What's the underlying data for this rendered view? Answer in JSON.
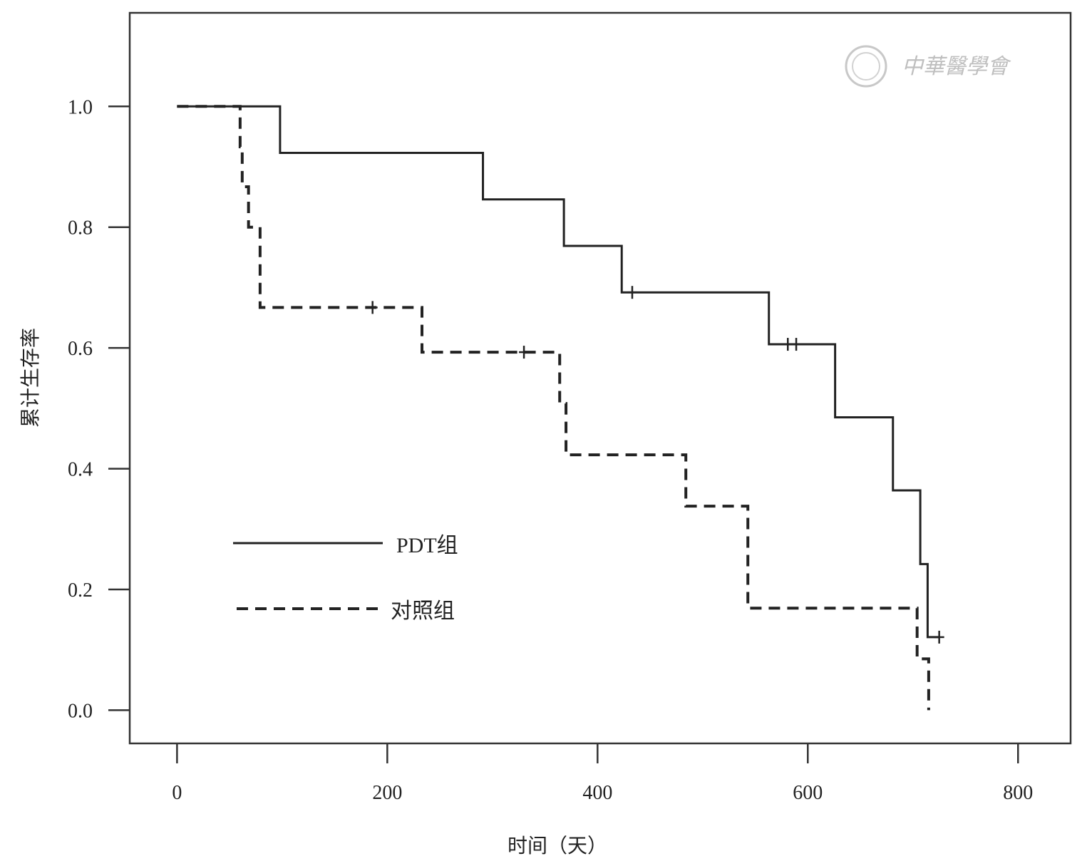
{
  "chart_data": {
    "type": "line",
    "subtype": "kaplan-meier-step",
    "xlabel": "时间（天）",
    "ylabel": "累计生存率",
    "xlim": [
      -45,
      850
    ],
    "ylim": [
      -0.055,
      1.155
    ],
    "xticks": [
      0,
      200,
      400,
      600,
      800
    ],
    "xtick_labels": [
      "0",
      "200",
      "400",
      "600",
      "800"
    ],
    "yticks": [
      0.0,
      0.2,
      0.4,
      0.6,
      0.8,
      1.0
    ],
    "ytick_labels": [
      "0.0",
      "0.2",
      "0.4",
      "0.6",
      "0.8",
      "1.0"
    ],
    "grid": false,
    "legend_position": "lower-left",
    "series": [
      {
        "name": "PDT组",
        "style": "solid",
        "color": "#222222",
        "steps": [
          [
            0,
            1.0
          ],
          [
            98,
            0.923
          ],
          [
            291,
            0.846
          ],
          [
            368,
            0.769
          ],
          [
            423,
            0.692
          ],
          [
            563,
            0.606
          ],
          [
            626,
            0.485
          ],
          [
            681,
            0.364
          ],
          [
            707,
            0.242
          ],
          [
            714,
            0.121
          ]
        ],
        "end_x": 725,
        "censored": [
          [
            433,
            0.692
          ],
          [
            581,
            0.606
          ],
          [
            589,
            0.606
          ],
          [
            725,
            0.121
          ]
        ]
      },
      {
        "name": "对照组",
        "style": "dashed",
        "color": "#222222",
        "steps": [
          [
            0,
            1.0
          ],
          [
            60,
            0.933
          ],
          [
            62,
            0.867
          ],
          [
            68,
            0.8
          ],
          [
            79,
            0.667
          ],
          [
            233,
            0.593
          ],
          [
            364,
            0.508
          ],
          [
            370,
            0.423
          ],
          [
            484,
            0.338
          ],
          [
            543,
            0.169
          ],
          [
            704,
            0.085
          ],
          [
            715,
            0.0
          ]
        ],
        "end_x": 715,
        "censored": [
          [
            186,
            0.667
          ],
          [
            330,
            0.593
          ]
        ]
      }
    ]
  },
  "watermark": {
    "text": "中華醫學會"
  }
}
